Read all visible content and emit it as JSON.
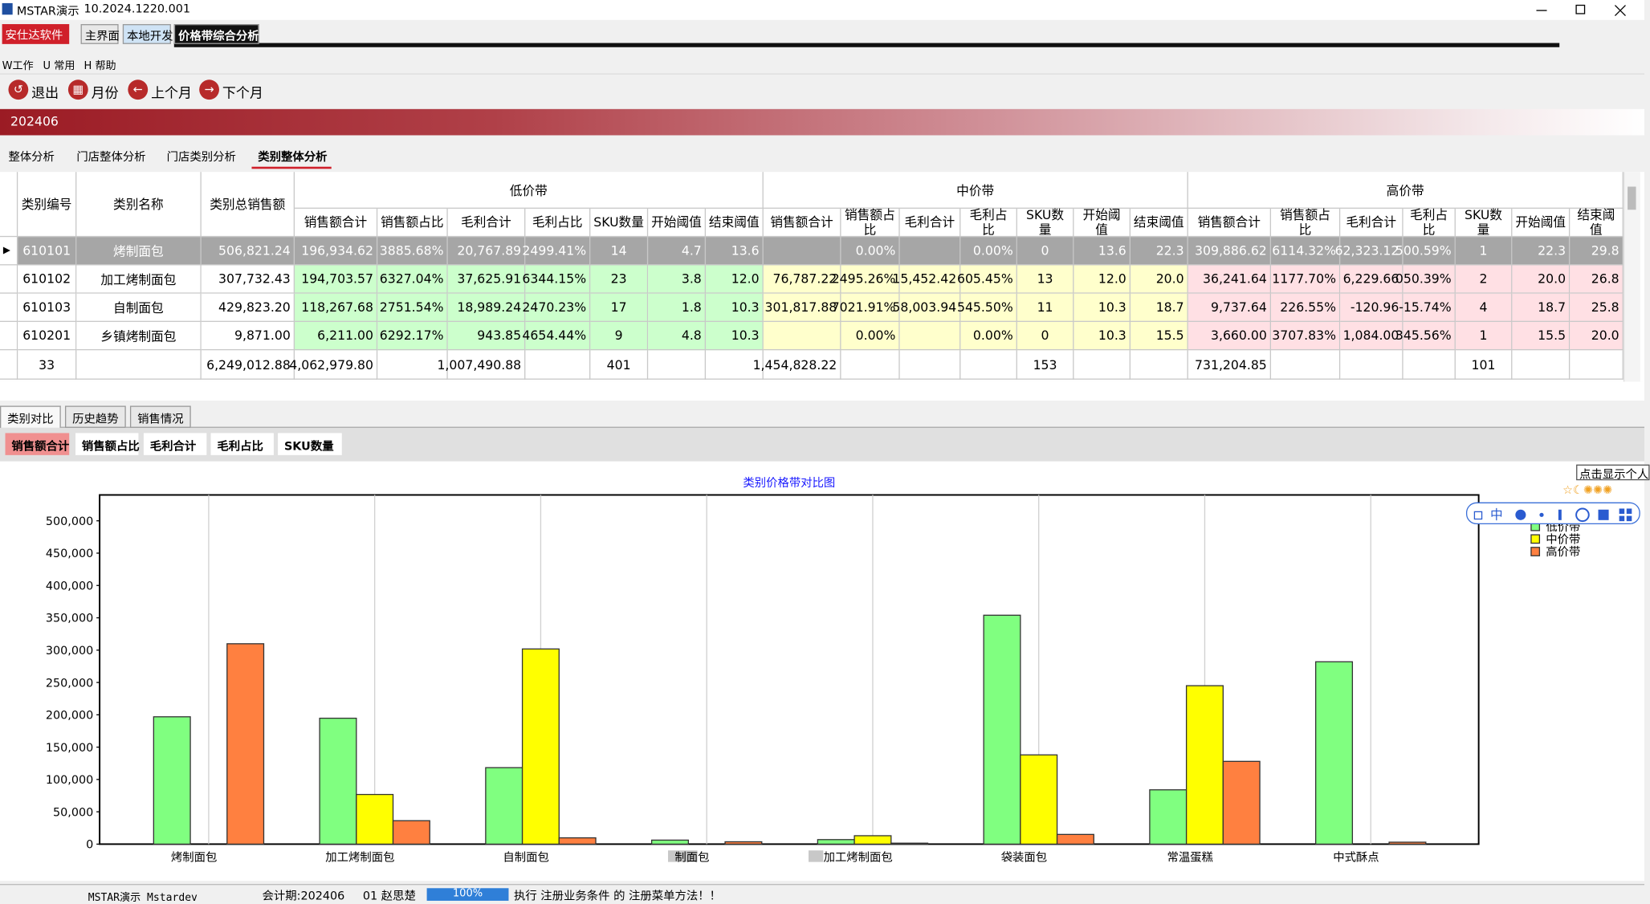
{
  "window": {
    "title": "MSTAR演示",
    "version": "10.2024.1220.001"
  },
  "app_tabs": {
    "brand": "安仕达软件",
    "tabs": [
      "主界面",
      "本地开发",
      "价格带综合分析"
    ]
  },
  "menu": [
    "W工作",
    "U 常用",
    "H 帮助"
  ],
  "toolbar": [
    "退出",
    "月份",
    "上个月",
    "下个月"
  ],
  "period": "202406",
  "analysis_tabs": [
    "整体分析",
    "门店整体分析",
    "门店类别分析",
    "类别整体分析"
  ],
  "table": {
    "fixed_headers": [
      "类别编号",
      "类别名称",
      "类别总销售额"
    ],
    "bands": [
      "低价带",
      "中价带",
      "高价带"
    ],
    "band_columns": [
      "销售额合计",
      "销售额占比",
      "毛利合计",
      "毛利占比",
      "SKU数量",
      "开始阈值",
      "结束阈值"
    ],
    "rows": [
      [
        "610101",
        "烤制面包",
        "506,821.24",
        "196,934.62",
        "3885.68%",
        "20,767.89",
        "2499.41%",
        "14",
        "4.7",
        "13.6",
        null,
        "0.00%",
        null,
        "0.00%",
        "0",
        "13.6",
        "22.3",
        "309,886.62",
        "6114.32%",
        "62,323.12",
        "500.59%",
        "1",
        "22.3",
        "29.8"
      ],
      [
        "610102",
        "加工烤制面包",
        "307,732.43",
        "194,703.57",
        "6327.04%",
        "37,625.91",
        "6344.15%",
        "23",
        "3.8",
        "12.0",
        "76,787.22",
        "2495.26%",
        "15,452.42",
        "605.45%",
        "13",
        "12.0",
        "20.0",
        "36,241.64",
        "1177.70%",
        "6,229.66",
        "050.39%",
        "2",
        "20.0",
        "26.8"
      ],
      [
        "610103",
        "自制面包",
        "429,823.20",
        "118,267.68",
        "2751.54%",
        "18,989.24",
        "2470.23%",
        "17",
        "1.8",
        "10.3",
        "301,817.88",
        "7021.91%",
        "58,003.94",
        "545.50%",
        "11",
        "10.3",
        "18.7",
        "9,737.64",
        "226.55%",
        "-120.96",
        "-15.74%",
        "4",
        "18.7",
        "25.8"
      ],
      [
        "610201",
        "乡镇烤制面包",
        "9,871.00",
        "6,211.00",
        "6292.17%",
        "943.85",
        "4654.44%",
        "9",
        "4.8",
        "10.3",
        null,
        "0.00%",
        null,
        "0.00%",
        "0",
        "10.3",
        "15.5",
        "3,660.00",
        "3707.83%",
        "1,084.00",
        "345.56%",
        "1",
        "15.5",
        "20.0"
      ]
    ],
    "totals": [
      "33",
      null,
      "6,249,012.88",
      "4,062,979.80",
      null,
      "1,007,490.88",
      null,
      "401",
      null,
      null,
      "1,454,828.22",
      null,
      null,
      null,
      "153",
      null,
      null,
      "731,204.85",
      null,
      null,
      null,
      "101",
      null,
      null
    ]
  },
  "view_tabs": [
    "类别对比",
    "历史趋势",
    "销售情况"
  ],
  "metric_buttons": [
    "销售额合计",
    "销售额占比",
    "毛利合计",
    "毛利占比",
    "SKU数量"
  ],
  "tooltip": "点击显示个人",
  "ime_label": "中",
  "chart_data": {
    "type": "bar",
    "title": "类别价格带对比图",
    "categories": [
      "烤制面包",
      "加工烤制面包",
      "自制面包",
      "制面包",
      "加工烤制面包",
      "袋装面包",
      "常温蛋糕",
      "中式酥点"
    ],
    "series": [
      {
        "name": "低价带",
        "color": "#80ff80",
        "values": [
          196934.62,
          194703.57,
          118267.68,
          6211,
          7000,
          354000,
          84000,
          282000
        ]
      },
      {
        "name": "中价带",
        "color": "#ffff00",
        "values": [
          0,
          76787.22,
          301817.88,
          0,
          13000,
          138000,
          245000,
          0
        ]
      },
      {
        "name": "高价带",
        "color": "#ff8040",
        "values": [
          309886.62,
          36241.64,
          9737.64,
          3660,
          1500,
          15000,
          128000,
          3000
        ]
      }
    ],
    "ylim": [
      0,
      540000
    ],
    "yticks": [
      0,
      {
        "value": 50000,
        "label": "50,000"
      },
      {
        "value": 100000,
        "label": "100,000"
      },
      {
        "value": 150000,
        "label": "150,000"
      },
      {
        "value": 200000,
        "label": "200,000"
      },
      {
        "value": 250000,
        "label": "250,000"
      },
      {
        "value": 300000,
        "label": "300,000"
      },
      {
        "value": 350000,
        "label": "350,000"
      },
      {
        "value": 400000,
        "label": "400,000"
      },
      {
        "value": 450000,
        "label": "450,000"
      },
      {
        "value": 500000,
        "label": "500,000"
      }
    ],
    "legend": "right"
  },
  "status_bar": {
    "app": "MSTAR演示 Mstardev",
    "period": "会计期:202406",
    "user": "01 赵思楚",
    "progress": "100%",
    "message": "执行  注册业务条件  的  注册菜单方法！！"
  }
}
